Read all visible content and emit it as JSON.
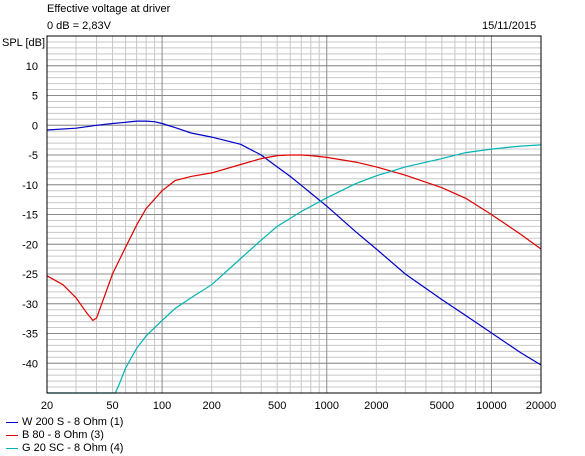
{
  "header": {
    "title": "Effective voltage at driver",
    "reference": "0 dB = 2,83V",
    "date": "15/11/2015"
  },
  "chart_data": {
    "type": "line",
    "title": "Effective voltage at driver",
    "ylabel": "SPL [dB]",
    "xlabel": "",
    "xscale": "log",
    "xlim": [
      20,
      20000
    ],
    "ylim": [
      -45,
      15
    ],
    "grid": true,
    "x_ticks": [
      20,
      50,
      100,
      200,
      500,
      1000,
      2000,
      5000,
      10000,
      20000
    ],
    "x_tick_labels": [
      "20",
      "50",
      "100",
      "200",
      "500",
      "1000",
      "2000",
      "5000",
      "10000",
      "20000"
    ],
    "y_ticks": [
      10,
      5,
      0,
      -5,
      -10,
      -15,
      -20,
      -25,
      -30,
      -35,
      -40
    ],
    "y_tick_labels": [
      "10",
      "5",
      "0",
      "-5",
      "-10",
      "-15",
      "-20",
      "-25",
      "-30",
      "-35",
      "-40"
    ],
    "legend_position": "bottom-left",
    "series": [
      {
        "name": "W 200 S - 8 Ohm (1)",
        "color": "#0000c8",
        "points": [
          [
            20,
            -0.8
          ],
          [
            30,
            -0.5
          ],
          [
            40,
            0.0
          ],
          [
            50,
            0.3
          ],
          [
            60,
            0.5
          ],
          [
            70,
            0.7
          ],
          [
            80,
            0.7
          ],
          [
            90,
            0.6
          ],
          [
            100,
            0.3
          ],
          [
            120,
            -0.4
          ],
          [
            150,
            -1.3
          ],
          [
            200,
            -2.0
          ],
          [
            300,
            -3.2
          ],
          [
            400,
            -5.0
          ],
          [
            500,
            -7.0
          ],
          [
            600,
            -8.6
          ],
          [
            700,
            -10.1
          ],
          [
            800,
            -11.4
          ],
          [
            1000,
            -13.6
          ],
          [
            1500,
            -17.9
          ],
          [
            2000,
            -20.8
          ],
          [
            3000,
            -25.0
          ],
          [
            5000,
            -29.3
          ],
          [
            7000,
            -32.0
          ],
          [
            10000,
            -34.9
          ],
          [
            15000,
            -38.2
          ],
          [
            20000,
            -40.3
          ]
        ]
      },
      {
        "name": "B 80 - 8 Ohm (3)",
        "color": "#e00000",
        "points": [
          [
            20,
            -25.3
          ],
          [
            25,
            -26.8
          ],
          [
            30,
            -29.0
          ],
          [
            35,
            -31.6
          ],
          [
            38,
            -32.8
          ],
          [
            40,
            -32.4
          ],
          [
            45,
            -28.5
          ],
          [
            50,
            -25.0
          ],
          [
            60,
            -20.5
          ],
          [
            70,
            -16.8
          ],
          [
            80,
            -14.0
          ],
          [
            100,
            -11.0
          ],
          [
            120,
            -9.3
          ],
          [
            150,
            -8.6
          ],
          [
            200,
            -8.0
          ],
          [
            300,
            -6.6
          ],
          [
            400,
            -5.6
          ],
          [
            500,
            -5.1
          ],
          [
            600,
            -5.0
          ],
          [
            700,
            -5.0
          ],
          [
            800,
            -5.1
          ],
          [
            1000,
            -5.4
          ],
          [
            1500,
            -6.2
          ],
          [
            2000,
            -7.0
          ],
          [
            3000,
            -8.4
          ],
          [
            5000,
            -10.5
          ],
          [
            7000,
            -12.3
          ],
          [
            10000,
            -15.0
          ],
          [
            15000,
            -18.3
          ],
          [
            20000,
            -20.8
          ]
        ]
      },
      {
        "name": "G 20 SC - 8 Ohm (4)",
        "color": "#00b4b4",
        "points": [
          [
            20,
            -45.0
          ],
          [
            30,
            -45.0
          ],
          [
            40,
            -45.0
          ],
          [
            52,
            -45.0
          ],
          [
            55,
            -43.5
          ],
          [
            60,
            -40.8
          ],
          [
            70,
            -37.5
          ],
          [
            80,
            -35.4
          ],
          [
            100,
            -32.8
          ],
          [
            120,
            -30.8
          ],
          [
            150,
            -29.0
          ],
          [
            200,
            -26.8
          ],
          [
            300,
            -22.4
          ],
          [
            400,
            -19.3
          ],
          [
            500,
            -17.0
          ],
          [
            700,
            -14.5
          ],
          [
            1000,
            -12.2
          ],
          [
            1500,
            -9.8
          ],
          [
            2000,
            -8.5
          ],
          [
            3000,
            -7.0
          ],
          [
            5000,
            -5.6
          ],
          [
            7000,
            -4.6
          ],
          [
            10000,
            -4.0
          ],
          [
            15000,
            -3.5
          ],
          [
            20000,
            -3.3
          ]
        ]
      }
    ]
  }
}
